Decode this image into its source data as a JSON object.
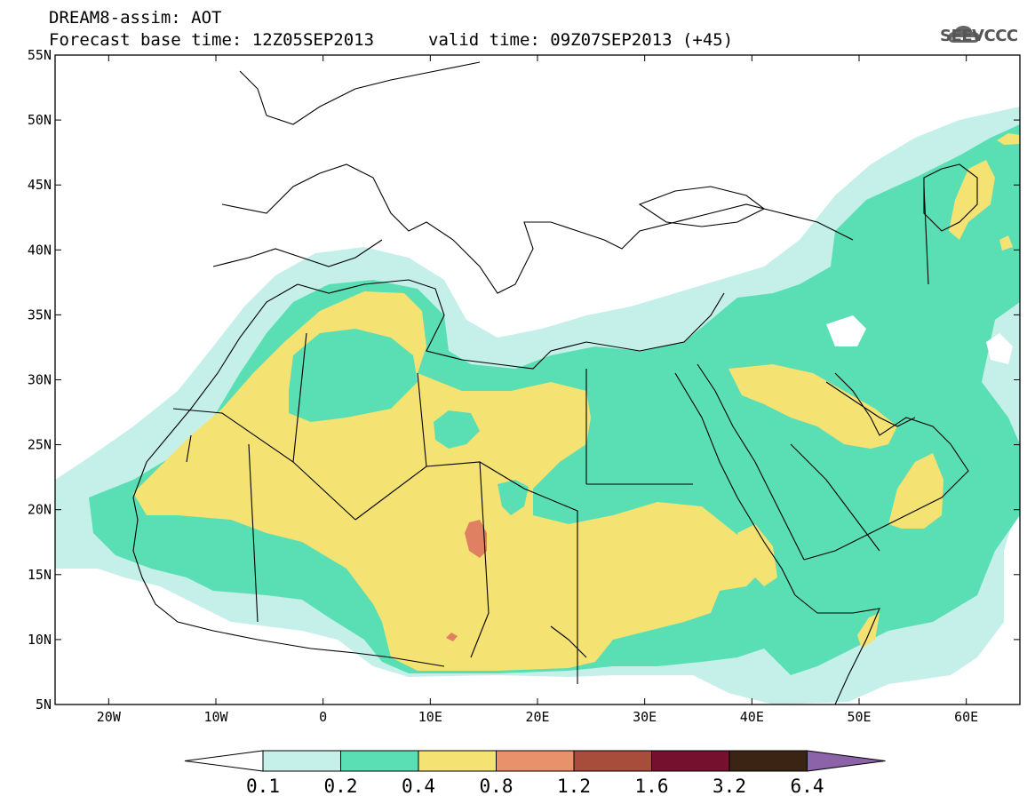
{
  "header": {
    "line1": "DREAM8-assim: AOT",
    "line2_left": "Forecast base time: 12Z05SEP2013",
    "line2_right": "valid time: 09Z07SEP2013 (+45)"
  },
  "logo": {
    "text": "SEEVCCC",
    "icon": "cloud-icon"
  },
  "map": {
    "lon_range": [
      -25,
      65
    ],
    "lat_range": [
      5,
      55
    ],
    "lon_ticks": [
      {
        "value": -20,
        "label": "20W"
      },
      {
        "value": -10,
        "label": "10W"
      },
      {
        "value": 0,
        "label": "0"
      },
      {
        "value": 10,
        "label": "10E"
      },
      {
        "value": 20,
        "label": "20E"
      },
      {
        "value": 30,
        "label": "30E"
      },
      {
        "value": 40,
        "label": "40E"
      },
      {
        "value": 50,
        "label": "50E"
      },
      {
        "value": 60,
        "label": "60E"
      }
    ],
    "lat_ticks": [
      {
        "value": 5,
        "label": "5N"
      },
      {
        "value": 10,
        "label": "10N"
      },
      {
        "value": 15,
        "label": "15N"
      },
      {
        "value": 20,
        "label": "20N"
      },
      {
        "value": 25,
        "label": "25N"
      },
      {
        "value": 30,
        "label": "30N"
      },
      {
        "value": 35,
        "label": "35N"
      },
      {
        "value": 40,
        "label": "40N"
      },
      {
        "value": 45,
        "label": "45N"
      },
      {
        "value": 50,
        "label": "50N"
      },
      {
        "value": 55,
        "label": "55N"
      }
    ]
  },
  "colorbar": {
    "labels": [
      "0.1",
      "0.2",
      "0.4",
      "0.8",
      "1.2",
      "1.6",
      "3.2",
      "6.4"
    ],
    "colors": [
      "#ffffff",
      "#c5f0ea",
      "#5adfb4",
      "#f4e273",
      "#e8916a",
      "#a84c3c",
      "#75102e",
      "#3b2414",
      "#8c62a8"
    ]
  },
  "colors": {
    "lt_cyan": "#c5f0ea",
    "green": "#5adfb4",
    "yellow": "#f4e273",
    "salmon": "#e08062"
  }
}
